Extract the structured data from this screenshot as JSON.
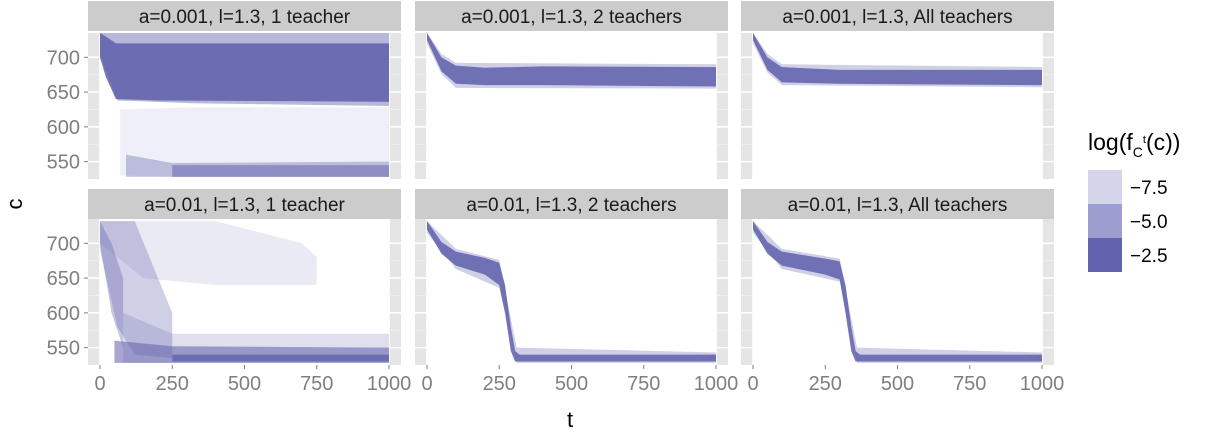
{
  "chart_data": {
    "type": "heatmap",
    "xlabel": "t",
    "ylabel": "c",
    "xlim": [
      0,
      1000
    ],
    "ylim": [
      525,
      735
    ],
    "x_ticks": [
      "0",
      "250",
      "500",
      "750",
      "1000"
    ],
    "y_ticks": [
      "700",
      "650",
      "600",
      "550"
    ],
    "y_tick_values": [
      700,
      650,
      600,
      550
    ],
    "x_tick_values": [
      0,
      250,
      500,
      750,
      1000
    ],
    "fill_colors": {
      "panel": "#e5e5e5",
      "strip": "#cccccc",
      "density": "#5f5fac"
    },
    "legend": {
      "title_main": "log(f",
      "title_sub": "C",
      "title_sup": "t",
      "title_end": "(c))",
      "entries": [
        {
          "label": "−7.5",
          "value": -7.5,
          "color": "#d4d4ea"
        },
        {
          "label": "−5.0",
          "value": -5.0,
          "color": "#9d9dcf"
        },
        {
          "label": "−2.5",
          "value": -2.5,
          "color": "#6262ae"
        }
      ]
    },
    "panels": [
      {
        "label": "a=0.001, l=1.3, 1 teacher",
        "bands": [
          {
            "points": [
              [
                0,
                735,
                700
              ],
              [
                20,
                730,
                672
              ],
              [
                55,
                720,
                640
              ],
              [
                200,
                720,
                638
              ],
              [
                1000,
                720,
                636
              ]
            ],
            "opacity": 0.85
          },
          {
            "points": [
              [
                0,
                735,
                705
              ],
              [
                40,
                735,
                660
              ],
              [
                60,
                735,
                638
              ],
              [
                320,
                735,
                634
              ],
              [
                1000,
                735,
                630
              ]
            ],
            "opacity": 0.45
          },
          {
            "points": [
              [
                70,
                625,
                530
              ],
              [
                320,
                628,
                528
              ],
              [
                1000,
                628,
                528
              ]
            ],
            "opacity": 0.1
          },
          {
            "points": [
              [
                90,
                560,
                528
              ],
              [
                250,
                548,
                528
              ],
              [
                1000,
                550,
                528
              ]
            ],
            "opacity": 0.35
          },
          {
            "points": [
              [
                250,
                545,
                528
              ],
              [
                1000,
                545,
                528
              ]
            ],
            "opacity": 0.5
          }
        ]
      },
      {
        "label": "a=0.001, l=1.3, 2 teachers",
        "bands": [
          {
            "points": [
              [
                0,
                735,
                725
              ],
              [
                50,
                700,
                680
              ],
              [
                100,
                688,
                662
              ],
              [
                200,
                685,
                660
              ],
              [
                400,
                687,
                660
              ],
              [
                1000,
                686,
                658
              ]
            ],
            "opacity": 0.85
          },
          {
            "points": [
              [
                0,
                735,
                720
              ],
              [
                50,
                705,
                676
              ],
              [
                100,
                692,
                656
              ],
              [
                1000,
                690,
                655
              ]
            ],
            "opacity": 0.3
          }
        ]
      },
      {
        "label": "a=0.001, l=1.3, All teachers",
        "bands": [
          {
            "points": [
              [
                0,
                735,
                725
              ],
              [
                50,
                700,
                682
              ],
              [
                100,
                686,
                664
              ],
              [
                300,
                682,
                662
              ],
              [
                1000,
                682,
                660
              ]
            ],
            "opacity": 0.85
          },
          {
            "points": [
              [
                0,
                735,
                720
              ],
              [
                50,
                705,
                678
              ],
              [
                100,
                690,
                660
              ],
              [
                1000,
                686,
                657
              ]
            ],
            "opacity": 0.3
          }
        ]
      },
      {
        "label": "a=0.01, l=1.3, 1 teacher",
        "bands": [
          {
            "points": [
              [
                0,
                732,
                700
              ],
              [
                150,
                732,
                650
              ],
              [
                400,
                732,
                640
              ],
              [
                700,
                700,
                640
              ],
              [
                750,
                680,
                640
              ]
            ],
            "opacity": 0.13
          },
          {
            "points": [
              [
                0,
                732,
                690
              ],
              [
                60,
                732,
                580
              ],
              [
                120,
                732,
                540
              ],
              [
                250,
                600,
                535
              ]
            ],
            "opacity": 0.3
          },
          {
            "points": [
              [
                0,
                732,
                700
              ],
              [
                40,
                700,
                600
              ],
              [
                80,
                650,
                550
              ]
            ],
            "opacity": 0.35
          },
          {
            "points": [
              [
                80,
                600,
                528
              ],
              [
                250,
                570,
                528
              ],
              [
                1000,
                570,
                528
              ]
            ],
            "opacity": 0.2
          },
          {
            "points": [
              [
                50,
                560,
                528
              ],
              [
                250,
                552,
                528
              ],
              [
                1000,
                550,
                528
              ]
            ],
            "opacity": 0.55
          },
          {
            "points": [
              [
                250,
                540,
                530
              ],
              [
                1000,
                540,
                530
              ]
            ],
            "opacity": 0.75
          }
        ]
      },
      {
        "label": "a=0.01, l=1.3, 2 teachers",
        "bands": [
          {
            "points": [
              [
                0,
                732,
                720
              ],
              [
                50,
                702,
                685
              ],
              [
                100,
                688,
                668
              ],
              [
                200,
                679,
                655
              ],
              [
                250,
                672,
                640
              ],
              [
                270,
                640,
                600
              ],
              [
                290,
                580,
                545
              ],
              [
                305,
                545,
                530
              ],
              [
                320,
                540,
                530
              ],
              [
                1000,
                540,
                530
              ]
            ],
            "opacity": 0.85
          },
          {
            "points": [
              [
                0,
                732,
                715
              ],
              [
                100,
                692,
                663
              ],
              [
                250,
                676,
                636
              ],
              [
                310,
                550,
                528
              ],
              [
                1000,
                543,
                528
              ]
            ],
            "opacity": 0.3
          }
        ]
      },
      {
        "label": "a=0.01, l=1.3, All teachers",
        "bands": [
          {
            "points": [
              [
                0,
                732,
                720
              ],
              [
                50,
                702,
                685
              ],
              [
                100,
                688,
                668
              ],
              [
                250,
                678,
                655
              ],
              [
                300,
                674,
                648
              ],
              [
                320,
                640,
                600
              ],
              [
                340,
                580,
                545
              ],
              [
                355,
                545,
                530
              ],
              [
                370,
                540,
                530
              ],
              [
                1000,
                540,
                530
              ]
            ],
            "opacity": 0.85
          },
          {
            "points": [
              [
                0,
                732,
                715
              ],
              [
                100,
                692,
                663
              ],
              [
                300,
                678,
                645
              ],
              [
                360,
                550,
                528
              ],
              [
                1000,
                543,
                528
              ]
            ],
            "opacity": 0.3
          }
        ]
      }
    ]
  }
}
